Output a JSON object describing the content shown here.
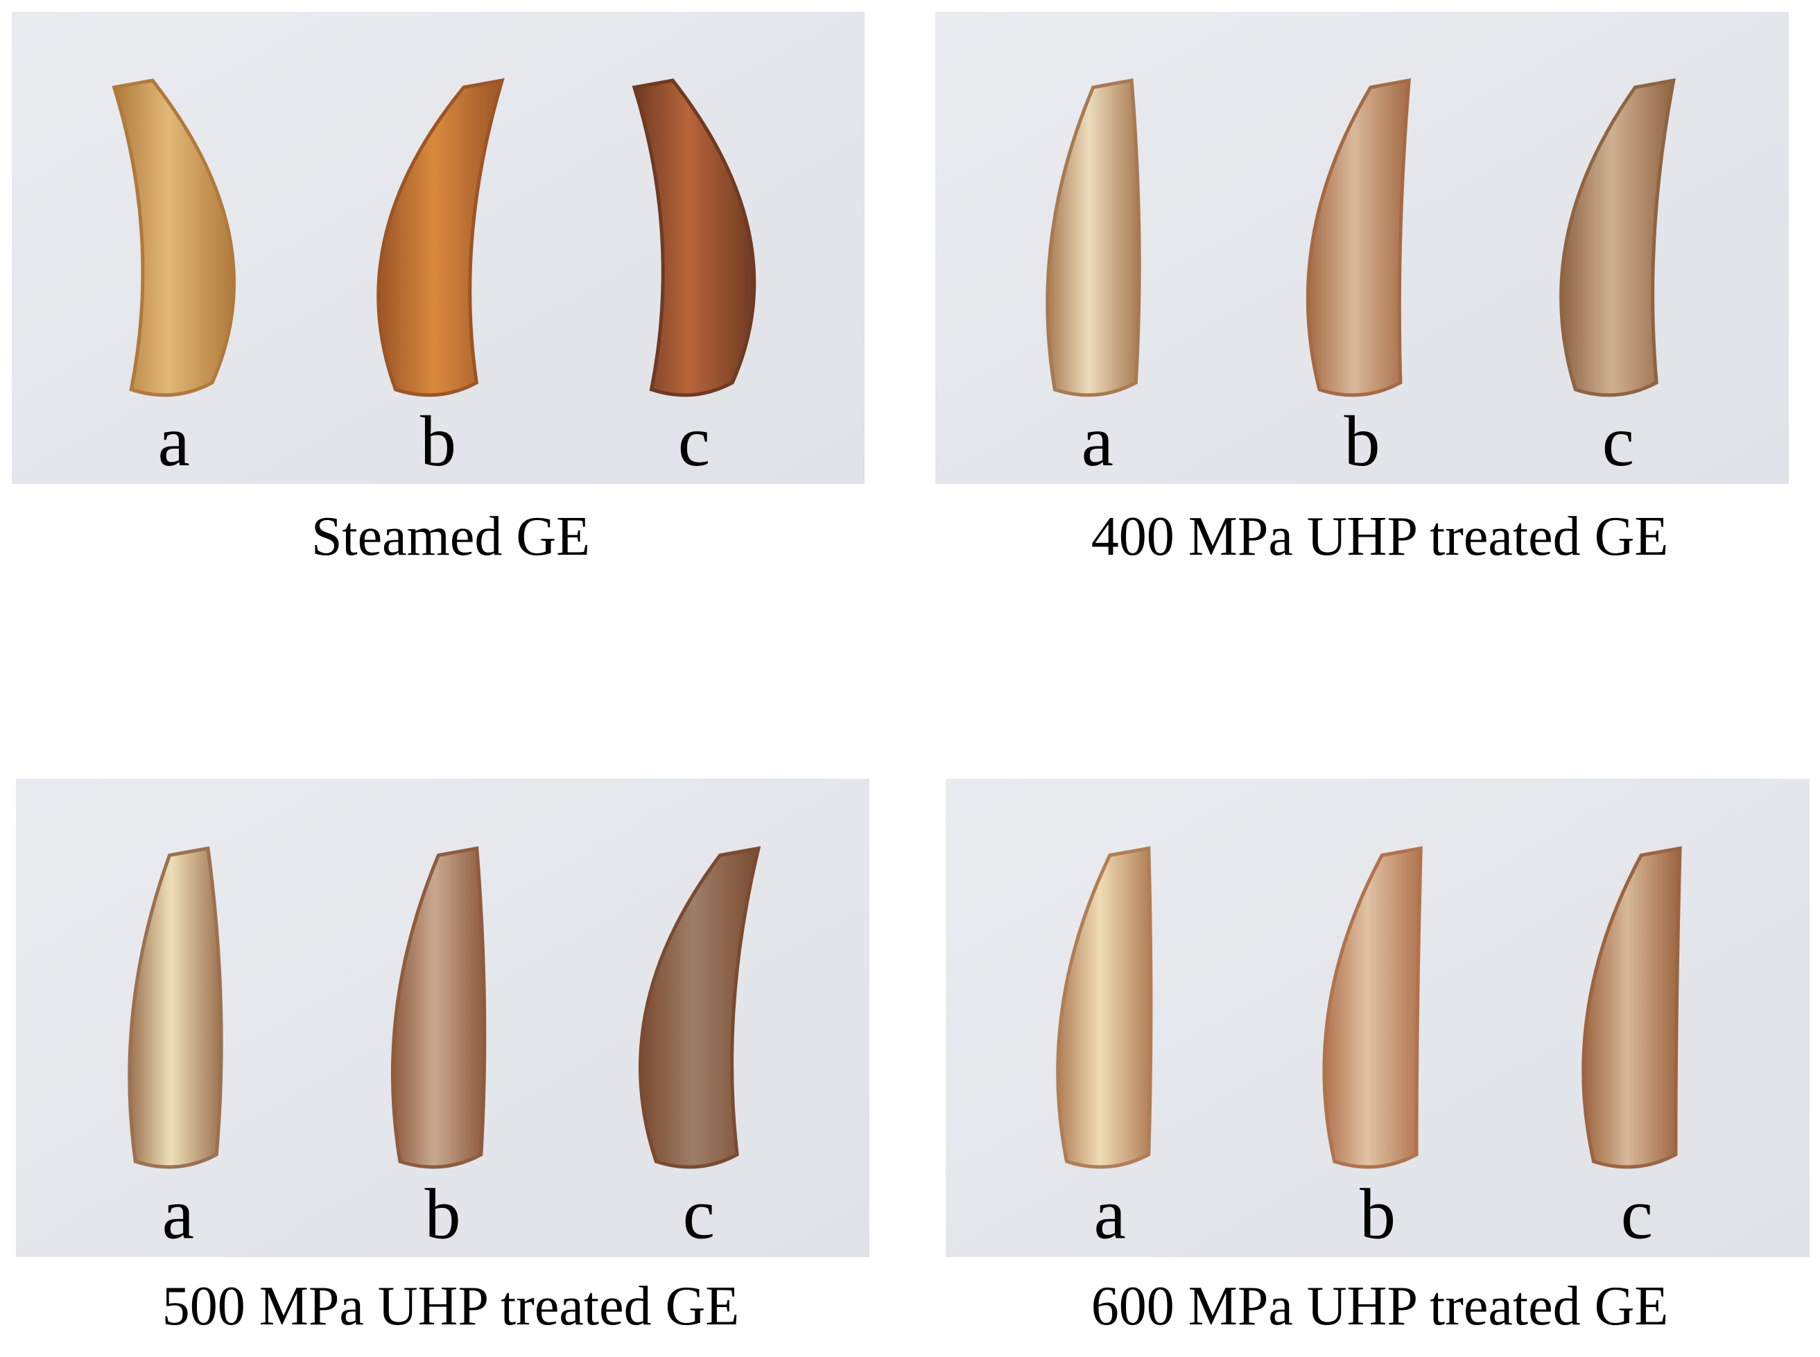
{
  "panels": [
    {
      "caption": "Steamed GE",
      "labels": [
        "a",
        "b",
        "c"
      ]
    },
    {
      "caption": "400 MPa UHP treated GE",
      "labels": [
        "a",
        "b",
        "c"
      ]
    },
    {
      "caption": "500 MPa UHP treated GE",
      "labels": [
        "a",
        "b",
        "c"
      ]
    },
    {
      "caption": "600 MPa UHP treated GE",
      "labels": [
        "a",
        "b",
        "c"
      ]
    }
  ]
}
